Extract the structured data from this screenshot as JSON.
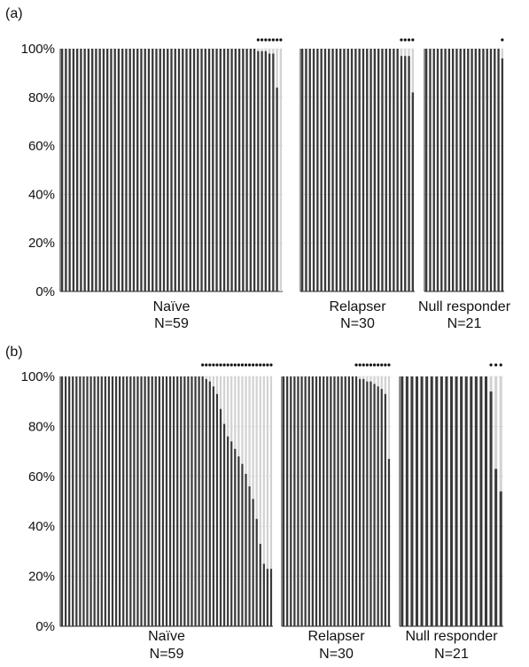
{
  "figure": {
    "panels": [
      {
        "label": "(a)",
        "y_tick_labels": [
          "100%",
          "80%",
          "60%",
          "40%",
          "20%",
          "0%"
        ],
        "groups": [
          {
            "name": "Naïve",
            "n_label": "N=59"
          },
          {
            "name": "Relapser",
            "n_label": "N=30"
          },
          {
            "name": "Null responder",
            "n_label": "N=21"
          }
        ]
      },
      {
        "label": "(b)",
        "y_tick_labels": [
          "100%",
          "80%",
          "60%",
          "40%",
          "20%",
          "0%"
        ],
        "groups": [
          {
            "name": "Naïve",
            "n_label": "N=59"
          },
          {
            "name": "Relapser",
            "n_label": "N=30"
          },
          {
            "name": "Null responder",
            "n_label": "N=21"
          }
        ]
      }
    ]
  },
  "chart_data": [
    {
      "type": "bar",
      "panel": "(a)",
      "stacked": true,
      "ylim": [
        0,
        100
      ],
      "y_unit": "%",
      "grid": true,
      "colors": {
        "dominant": "#3a3a3a",
        "minor": "#d2d2d2",
        "dot": "#111111"
      },
      "groups": [
        {
          "name": "Naïve",
          "n": 59,
          "values": [
            100,
            100,
            100,
            100,
            100,
            100,
            100,
            100,
            100,
            100,
            100,
            100,
            100,
            100,
            100,
            100,
            100,
            100,
            100,
            100,
            100,
            100,
            100,
            100,
            100,
            100,
            100,
            100,
            100,
            100,
            100,
            100,
            100,
            100,
            100,
            100,
            100,
            100,
            100,
            100,
            100,
            100,
            100,
            100,
            100,
            100,
            100,
            100,
            100,
            100,
            100,
            100,
            99,
            99,
            99,
            98,
            98,
            84,
            0
          ],
          "marked_count": 7
        },
        {
          "name": "Relapser",
          "n": 30,
          "values": [
            100,
            100,
            100,
            100,
            100,
            100,
            100,
            100,
            100,
            100,
            100,
            100,
            100,
            100,
            100,
            100,
            100,
            100,
            100,
            100,
            100,
            100,
            100,
            100,
            100,
            100,
            97,
            97,
            97,
            82
          ],
          "marked_count": 4
        },
        {
          "name": "Null responder",
          "n": 21,
          "values": [
            100,
            100,
            100,
            100,
            100,
            100,
            100,
            100,
            100,
            100,
            100,
            100,
            100,
            100,
            100,
            100,
            100,
            100,
            100,
            100,
            96
          ],
          "marked_count": 1
        }
      ]
    },
    {
      "type": "bar",
      "panel": "(b)",
      "stacked": true,
      "ylim": [
        0,
        100
      ],
      "y_unit": "%",
      "grid": true,
      "colors": {
        "dominant": "#3a3a3a",
        "minor": "#d2d2d2",
        "dot": "#111111"
      },
      "groups": [
        {
          "name": "Naïve",
          "n": 59,
          "values": [
            100,
            100,
            100,
            100,
            100,
            100,
            100,
            100,
            100,
            100,
            100,
            100,
            100,
            100,
            100,
            100,
            100,
            100,
            100,
            100,
            100,
            100,
            100,
            100,
            100,
            100,
            100,
            100,
            100,
            100,
            100,
            100,
            100,
            100,
            100,
            100,
            100,
            100,
            100,
            100,
            99,
            98,
            96,
            93,
            87,
            81,
            76,
            74,
            71,
            68,
            65,
            61,
            56,
            51,
            43,
            33,
            25,
            23,
            23
          ],
          "marked_count": 20
        },
        {
          "name": "Relapser",
          "n": 30,
          "values": [
            100,
            100,
            100,
            100,
            100,
            100,
            100,
            100,
            100,
            100,
            100,
            100,
            100,
            100,
            100,
            100,
            100,
            100,
            100,
            100,
            100,
            99,
            99,
            98,
            98,
            97,
            96,
            95,
            93,
            67
          ],
          "marked_count": 10
        },
        {
          "name": "Null responder",
          "n": 21,
          "values": [
            100,
            100,
            100,
            100,
            100,
            100,
            100,
            100,
            100,
            100,
            100,
            100,
            100,
            100,
            100,
            100,
            100,
            100,
            94,
            63,
            54
          ],
          "marked_count": 3
        }
      ]
    }
  ]
}
